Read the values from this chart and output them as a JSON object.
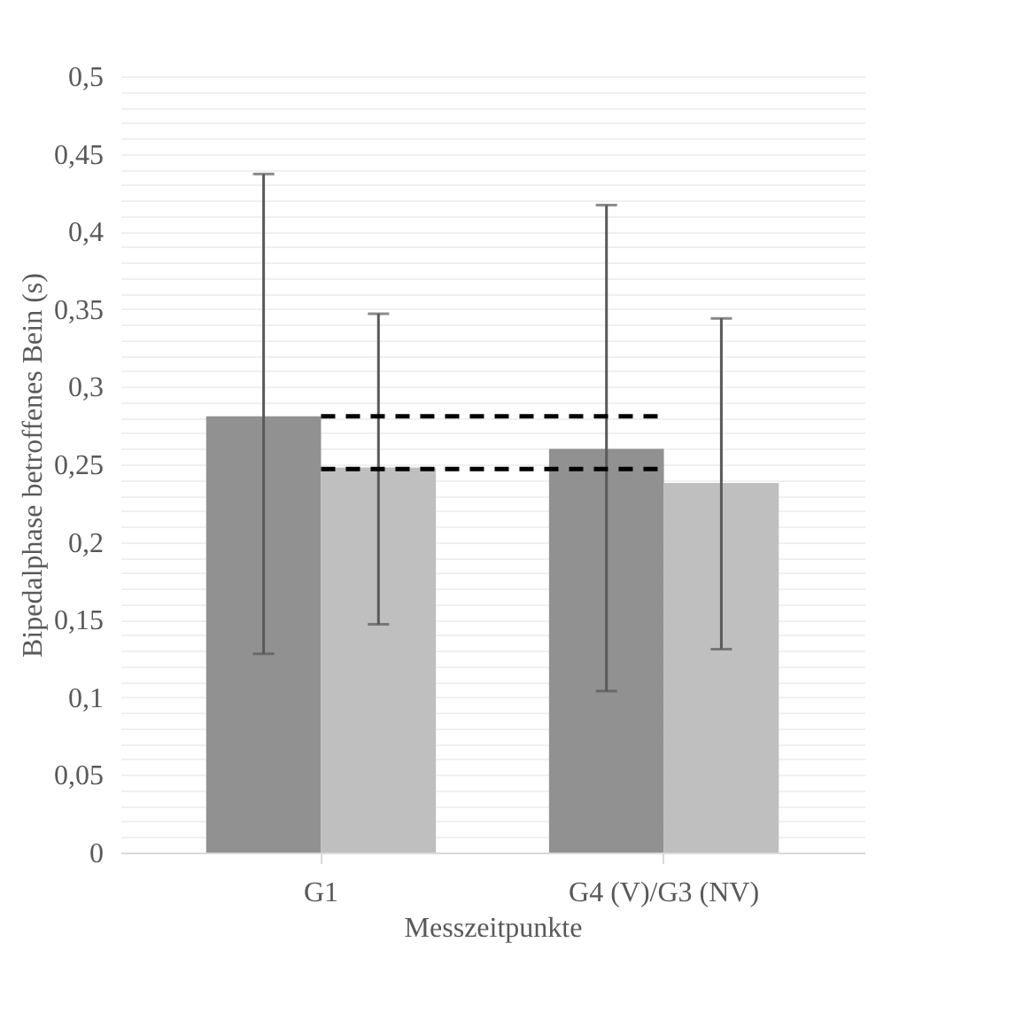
{
  "chart_data": {
    "type": "bar",
    "xlabel": "Messzeitpunkte",
    "ylabel": "Bipedalphase betroffenes Bein (s)",
    "categories": [
      "G1",
      "G4 (V)/G3 (NV)"
    ],
    "series": [
      {
        "color": "#919191",
        "values": [
          0.281,
          0.26
        ],
        "errors": [
          [
            0.128,
            0.437
          ],
          [
            0.104,
            0.417
          ]
        ]
      },
      {
        "color": "#bfbfbf",
        "values": [
          0.248,
          0.238
        ],
        "errors": [
          [
            0.147,
            0.347
          ],
          [
            0.131,
            0.344
          ]
        ]
      }
    ],
    "ylim": [
      0,
      0.5
    ],
    "yticks": [
      0,
      {
        "value": 0.01,
        "label": null
      },
      {
        "value": 0.02,
        "label": null
      },
      {
        "value": 0.03,
        "label": null
      },
      {
        "value": 0.04,
        "label": null
      },
      {
        "value": 0.05,
        "label": "0,05"
      },
      {
        "value": 0.06,
        "label": null
      },
      {
        "value": 0.07,
        "label": null
      },
      {
        "value": 0.08,
        "label": null
      },
      {
        "value": 0.09,
        "label": null
      },
      {
        "value": 0.1,
        "label": "0,1"
      },
      {
        "value": 0.11,
        "label": null
      },
      {
        "value": 0.12,
        "label": null
      },
      {
        "value": 0.13,
        "label": null
      },
      {
        "value": 0.14,
        "label": null
      },
      {
        "value": 0.15,
        "label": "0,15"
      },
      {
        "value": 0.16,
        "label": null
      },
      {
        "value": 0.17,
        "label": null
      },
      {
        "value": 0.18,
        "label": null
      },
      {
        "value": 0.19,
        "label": null
      },
      {
        "value": 0.2,
        "label": "0,2"
      },
      {
        "value": 0.21,
        "label": null
      },
      {
        "value": 0.22,
        "label": null
      },
      {
        "value": 0.23,
        "label": null
      },
      {
        "value": 0.24,
        "label": null
      },
      {
        "value": 0.25,
        "label": "0,25"
      },
      {
        "value": 0.26,
        "label": null
      },
      {
        "value": 0.27,
        "label": null
      },
      {
        "value": 0.28,
        "label": null
      },
      {
        "value": 0.29,
        "label": null
      },
      {
        "value": 0.3,
        "label": "0,3"
      },
      {
        "value": 0.31,
        "label": null
      },
      {
        "value": 0.32,
        "label": null
      },
      {
        "value": 0.33,
        "label": null
      },
      {
        "value": 0.34,
        "label": null
      },
      {
        "value": 0.35,
        "label": "0,35"
      },
      {
        "value": 0.36,
        "label": null
      },
      {
        "value": 0.37,
        "label": null
      },
      {
        "value": 0.38,
        "label": null
      },
      {
        "value": 0.39,
        "label": null
      },
      {
        "value": 0.4,
        "label": "0,4"
      },
      {
        "value": 0.41,
        "label": null
      },
      {
        "value": 0.42,
        "label": null
      },
      {
        "value": 0.43,
        "label": null
      },
      {
        "value": 0.44,
        "label": null
      },
      {
        "value": 0.45,
        "label": "0,45"
      },
      {
        "value": 0.46,
        "label": null
      },
      {
        "value": 0.47,
        "label": null
      },
      {
        "value": 0.48,
        "label": null
      },
      {
        "value": 0.49,
        "label": null
      },
      {
        "value": 0.5,
        "label": "0,5"
      }
    ],
    "grid": "y",
    "ref_lines": [
      {
        "axis": "y",
        "value": 0.281,
        "line_style": "dashed",
        "color": "#000000"
      },
      {
        "axis": "y",
        "value": 0.247,
        "line_style": "dashed",
        "color": "#000000"
      }
    ]
  }
}
